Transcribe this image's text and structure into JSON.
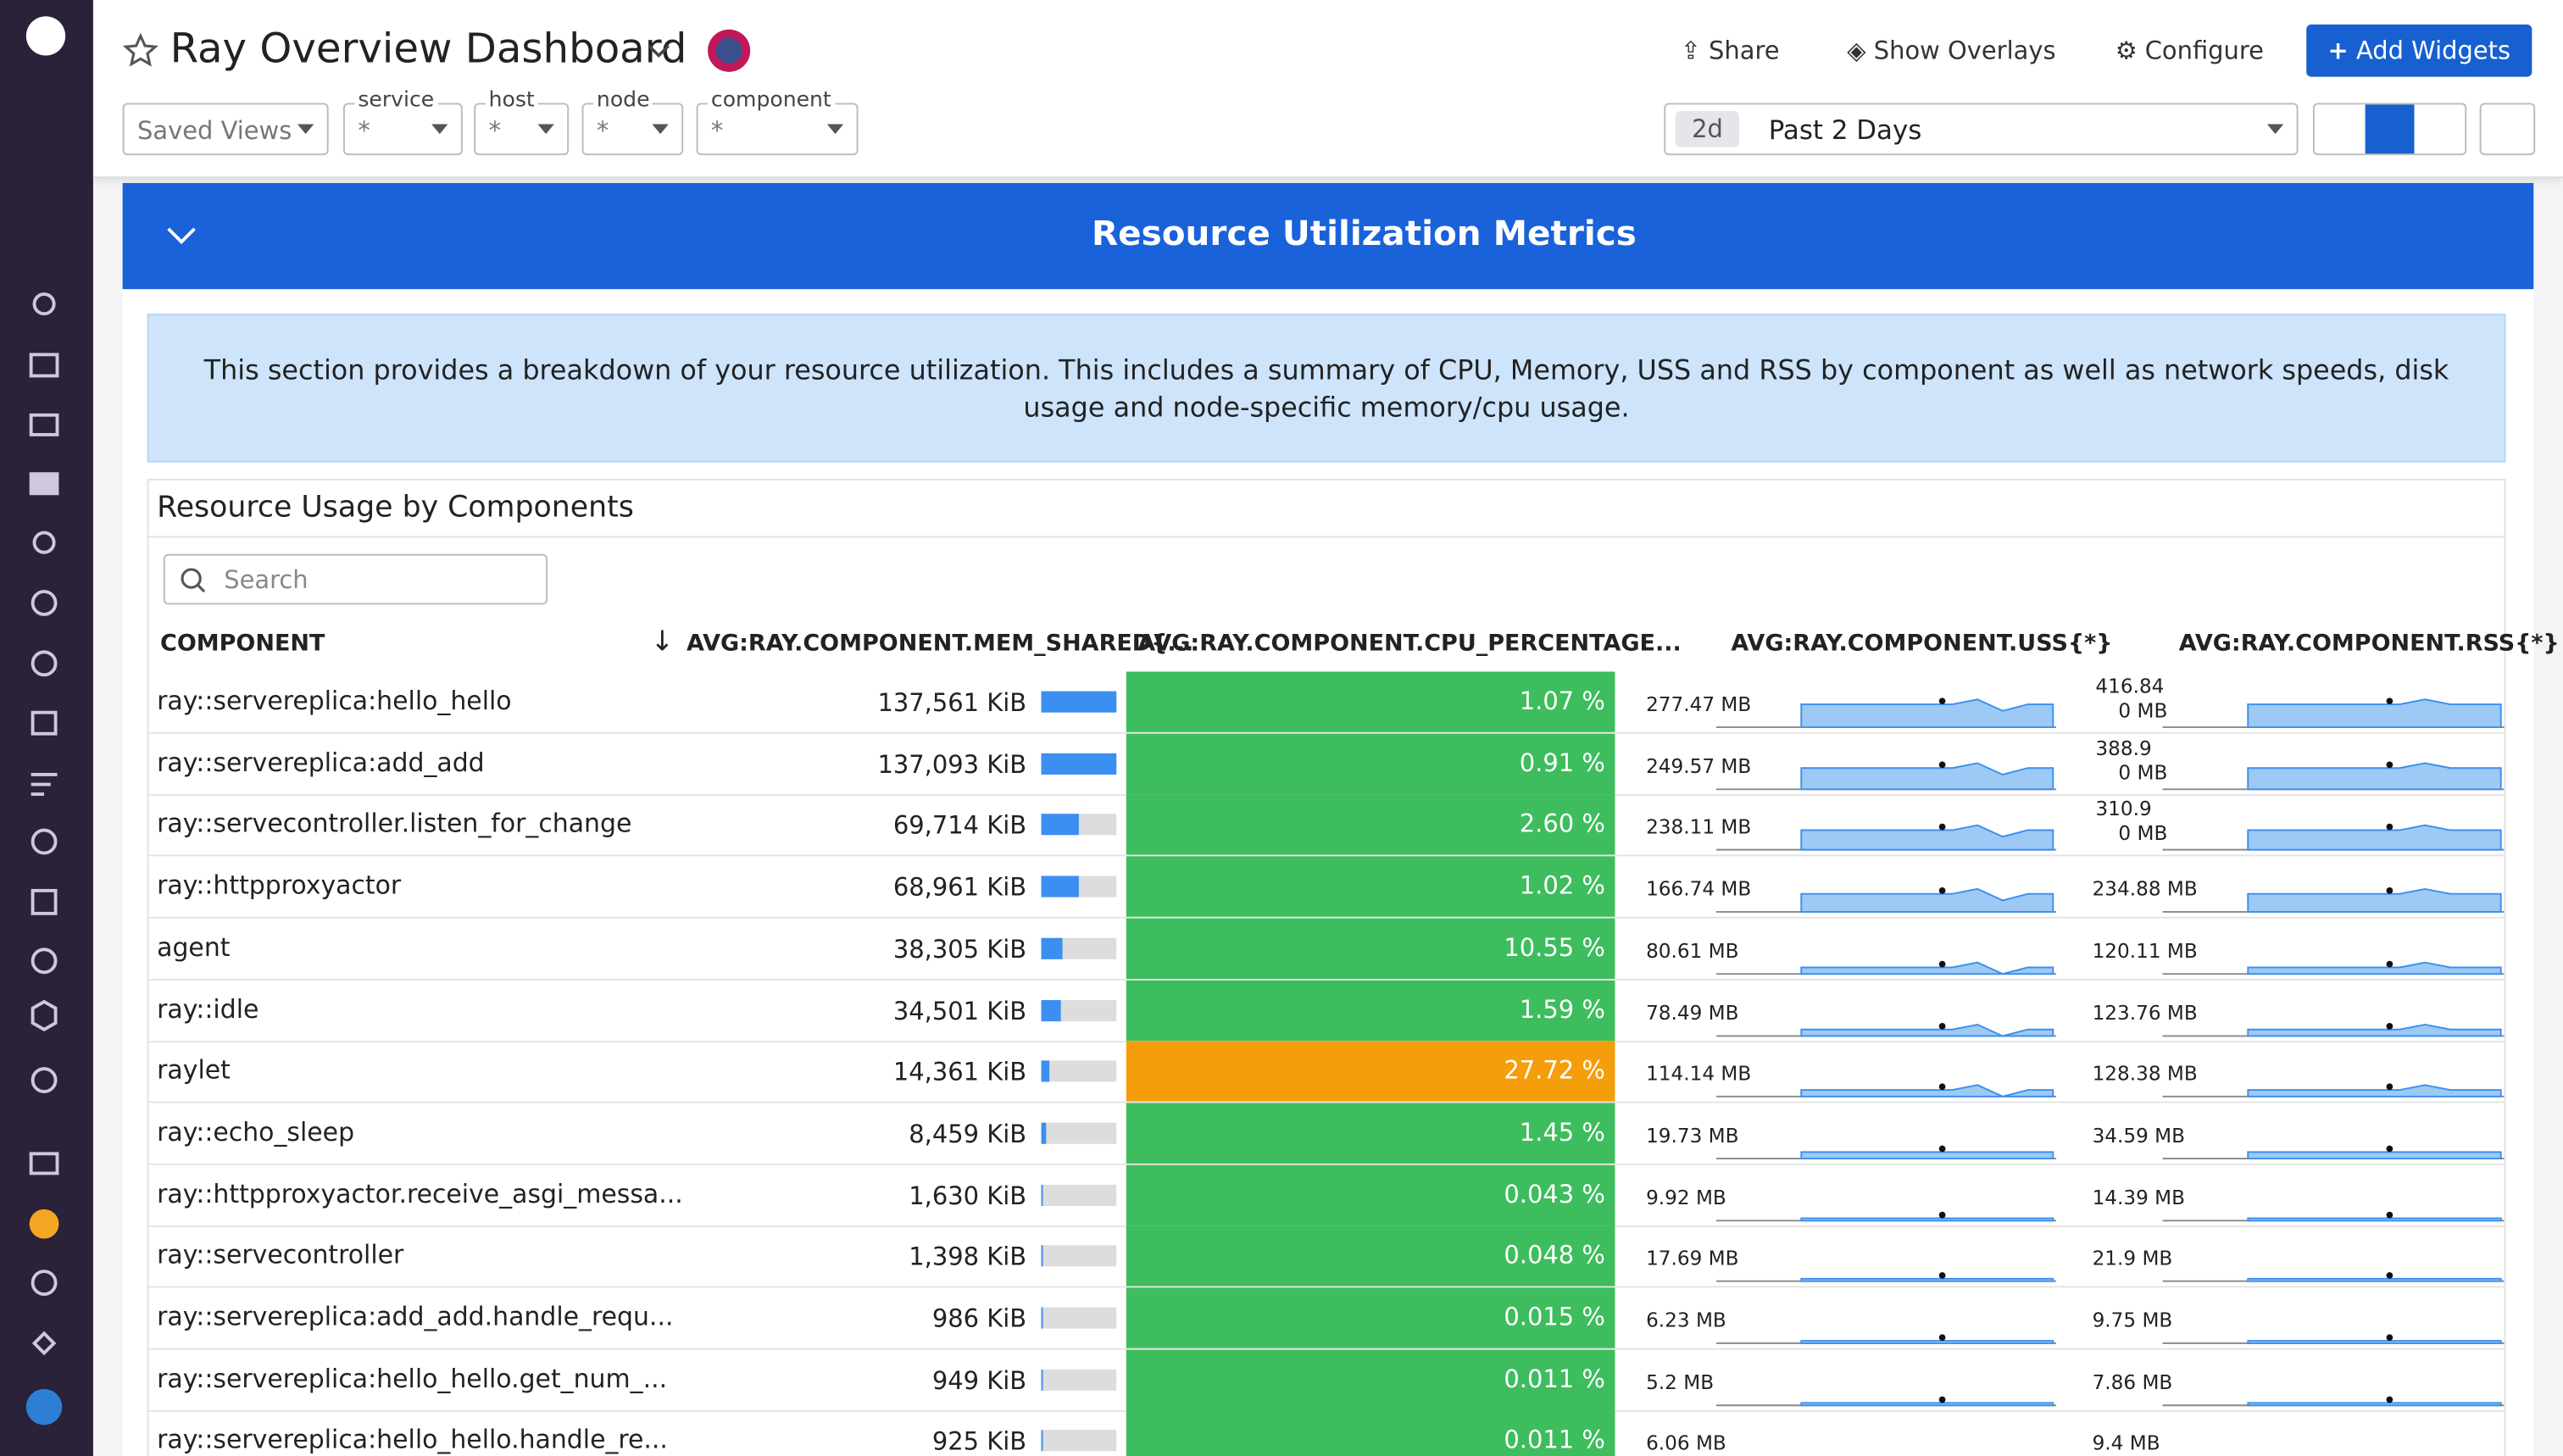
{
  "header": {
    "title": "Ray Overview Dashboard",
    "share": "Share",
    "overlays": "Show Overlays",
    "configure": "Configure",
    "add_widgets": "Add Widgets"
  },
  "filters": {
    "saved_views": "Saved Views",
    "items": [
      {
        "label": "service",
        "value": "*"
      },
      {
        "label": "host",
        "value": "*"
      },
      {
        "label": "node",
        "value": "*"
      },
      {
        "label": "component",
        "value": "*"
      }
    ]
  },
  "time": {
    "badge": "2d",
    "label": "Past 2 Days"
  },
  "section": {
    "title": "Resource Utilization Metrics",
    "description": "This section provides a breakdown of your resource utilization. This includes a summary of CPU, Memory, USS and RSS by component as well as network speeds, disk usage and node-specific memory/cpu usage."
  },
  "widget": {
    "title": "Resource Usage by Components",
    "search": "Search"
  },
  "table": {
    "columns": [
      "COMPONENT",
      "AVG:RAY.COMPONENT.MEM_SHARED{...",
      "AVG:RAY.COMPONENT.CPU_PERCENTAGE...",
      "AVG:RAY.COMPONENT.USS{*}",
      "AVG:RAY.COMPONENT.RSS{*}"
    ],
    "rows": [
      {
        "component": "ray::servereplica:hello_hello",
        "mem": 137561,
        "mem_label": "137,561 KiB",
        "cpu": "1.07 %",
        "cpu_color": "#3dbd5d",
        "uss": "277.47 MB",
        "rss": [
          "416.84",
          "0 MB"
        ]
      },
      {
        "component": "ray::servereplica:add_add",
        "mem": 137093,
        "mem_label": "137,093 KiB",
        "cpu": "0.91 %",
        "cpu_color": "#3dbd5d",
        "uss": "249.57 MB",
        "rss": [
          "388.9",
          "0 MB"
        ]
      },
      {
        "component": "ray::servecontroller.listen_for_change",
        "mem": 69714,
        "mem_label": "69,714 KiB",
        "cpu": "2.60 %",
        "cpu_color": "#3dbd5d",
        "uss": "238.11 MB",
        "rss": [
          "310.9",
          "0 MB"
        ]
      },
      {
        "component": "ray::httpproxyactor",
        "mem": 68961,
        "mem_label": "68,961 KiB",
        "cpu": "1.02 %",
        "cpu_color": "#3dbd5d",
        "uss": "166.74 MB",
        "rss": [
          "234.88 MB"
        ]
      },
      {
        "component": "agent",
        "mem": 38305,
        "mem_label": "38,305 KiB",
        "cpu": "10.55 %",
        "cpu_color": "#3dbd5d",
        "uss": "80.61 MB",
        "rss": [
          "120.11 MB"
        ]
      },
      {
        "component": "ray::idle",
        "mem": 34501,
        "mem_label": "34,501 KiB",
        "cpu": "1.59 %",
        "cpu_color": "#3dbd5d",
        "uss": "78.49 MB",
        "rss": [
          "123.76 MB"
        ]
      },
      {
        "component": "raylet",
        "mem": 14361,
        "mem_label": "14,361 KiB",
        "cpu": "27.72 %",
        "cpu_color": "#f59e0b",
        "uss": "114.14 MB",
        "rss": [
          "128.38 MB"
        ]
      },
      {
        "component": "ray::echo_sleep",
        "mem": 8459,
        "mem_label": "8,459 KiB",
        "cpu": "1.45 %",
        "cpu_color": "#3dbd5d",
        "uss": "19.73 MB",
        "rss": [
          "34.59 MB"
        ]
      },
      {
        "component": "ray::httpproxyactor.receive_asgi_messa...",
        "mem": 1630,
        "mem_label": "1,630 KiB",
        "cpu": "0.043 %",
        "cpu_color": "#3dbd5d",
        "uss": "9.92 MB",
        "rss": [
          "14.39 MB"
        ]
      },
      {
        "component": "ray::servecontroller",
        "mem": 1398,
        "mem_label": "1,398 KiB",
        "cpu": "0.048 %",
        "cpu_color": "#3dbd5d",
        "uss": "17.69 MB",
        "rss": [
          "21.9 MB"
        ]
      },
      {
        "component": "ray::servereplica:add_add.handle_requ...",
        "mem": 986,
        "mem_label": "986 KiB",
        "cpu": "0.015 %",
        "cpu_color": "#3dbd5d",
        "uss": "6.23 MB",
        "rss": [
          "9.75 MB"
        ]
      },
      {
        "component": "ray::servereplica:hello_hello.get_num_...",
        "mem": 949,
        "mem_label": "949 KiB",
        "cpu": "0.011 %",
        "cpu_color": "#3dbd5d",
        "uss": "5.2 MB",
        "rss": [
          "7.86 MB"
        ]
      },
      {
        "component": "ray::servereplica:hello_hello.handle_re...",
        "mem": 925,
        "mem_label": "925 KiB",
        "cpu": "0.011 %",
        "cpu_color": "#3dbd5d",
        "uss": "6.06 MB",
        "rss": [
          "9.4 MB"
        ]
      }
    ]
  }
}
